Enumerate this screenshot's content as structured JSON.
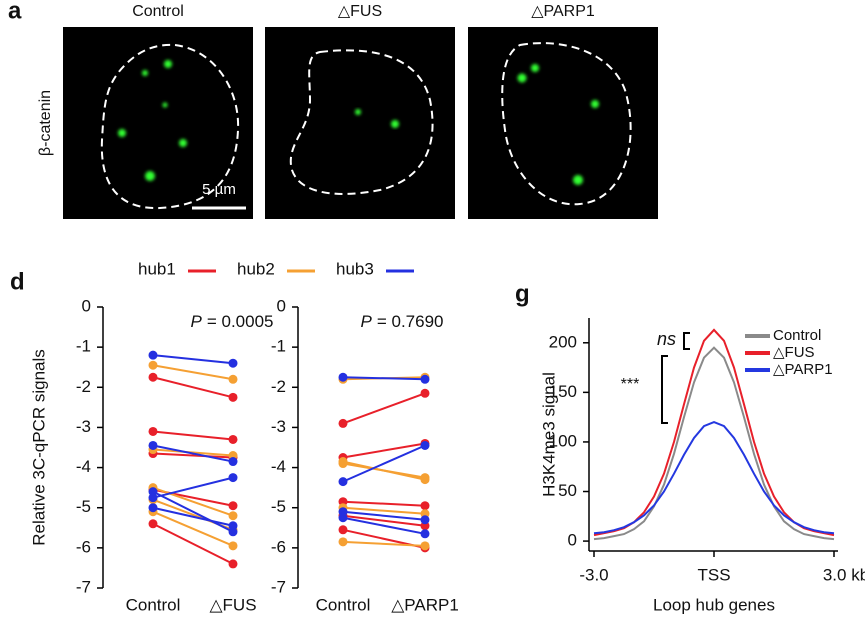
{
  "panel_labels": [
    "a",
    "d",
    "g"
  ],
  "panel_a": {
    "columns": [
      "Control",
      "△FUS",
      "△PARP1"
    ],
    "row_label": "β-catenin",
    "scale_bar": "5 µm"
  },
  "chart_data": [
    {
      "type": "slope",
      "categories": [
        "Control",
        "△FUS"
      ],
      "y_label": "Relative 3C-qPCR signals",
      "annotation": {
        "italic": "P",
        "text": "= 0.0005"
      },
      "ylim": [
        -7,
        0
      ],
      "yticks": [
        0,
        -1,
        -2,
        -3,
        -4,
        -5,
        -6,
        -7
      ],
      "series": [
        {
          "name": "hub1",
          "color": "#e8202a",
          "values": [
            [
              -1.75,
              -2.25
            ],
            [
              -3.1,
              -3.3
            ],
            [
              -3.65,
              -3.75
            ],
            [
              -4.55,
              -4.95
            ],
            [
              -5.4,
              -6.4
            ]
          ]
        },
        {
          "name": "hub2",
          "color": "#f5a033",
          "values": [
            [
              -1.45,
              -1.8
            ],
            [
              -3.55,
              -3.7
            ],
            [
              -4.5,
              -5.2
            ],
            [
              -4.8,
              -5.55
            ],
            [
              -5.1,
              -5.95
            ]
          ]
        },
        {
          "name": "hub3",
          "color": "#2430e0",
          "values": [
            [
              -1.2,
              -1.4
            ],
            [
              -3.45,
              -3.85
            ],
            [
              -4.6,
              -5.6
            ],
            [
              -4.75,
              -4.25
            ],
            [
              -5.0,
              -5.45
            ]
          ]
        }
      ]
    },
    {
      "type": "slope",
      "categories": [
        "Control",
        "△PARP1"
      ],
      "annotation": {
        "italic": "P",
        "text": "= 0.7690"
      },
      "ylim": [
        -7,
        0
      ],
      "yticks": [
        0,
        -1,
        -2,
        -3,
        -4,
        -5,
        -6,
        -7
      ],
      "series": [
        {
          "color": "#e8202a",
          "values": [
            [
              -2.9,
              -2.15
            ],
            [
              -3.75,
              -3.4
            ],
            [
              -4.85,
              -4.95
            ],
            [
              -5.2,
              -5.45
            ],
            [
              -5.55,
              -6.0
            ]
          ]
        },
        {
          "color": "#f5a033",
          "values": [
            [
              -1.8,
              -1.75
            ],
            [
              -3.9,
              -4.25
            ],
            [
              -5.0,
              -5.15
            ],
            [
              -5.85,
              -5.95
            ],
            [
              -3.85,
              -4.3
            ]
          ]
        },
        {
          "color": "#2430e0",
          "values": [
            [
              -1.75,
              -1.8
            ],
            [
              -4.35,
              -3.45
            ],
            [
              -5.1,
              -5.3
            ],
            [
              -5.25,
              -5.65
            ]
          ]
        }
      ]
    },
    {
      "type": "line",
      "x_label": "Loop hub genes",
      "y_label": "H3K4me3 signal",
      "legend": "upper right",
      "annotations": [
        "ns",
        "***"
      ],
      "x": [
        -3,
        -2.75,
        -2.5,
        -2.25,
        -2,
        -1.75,
        -1.5,
        -1.25,
        -1,
        -0.75,
        -0.5,
        -0.25,
        0,
        0.25,
        0.5,
        0.75,
        1,
        1.25,
        1.5,
        1.75,
        2,
        2.25,
        2.5,
        2.75,
        3
      ],
      "xlim": [
        -3,
        3
      ],
      "xticks": [
        {
          "value": -3,
          "label": "-3.0"
        },
        {
          "value": 0,
          "label": "TSS"
        },
        {
          "value": 3,
          "label": "3.0 kb"
        }
      ],
      "ylim": [
        -10,
        225
      ],
      "yticks": [
        0,
        50,
        100,
        150,
        200
      ],
      "series": [
        {
          "name": "Control",
          "color": "#8a8a8a",
          "values": [
            2,
            3,
            5,
            7,
            12,
            20,
            35,
            57,
            88,
            125,
            160,
            185,
            195,
            185,
            160,
            125,
            88,
            57,
            35,
            20,
            12,
            7,
            5,
            3,
            2
          ]
        },
        {
          "name": "△FUS",
          "color": "#e8202a",
          "values": [
            6,
            8,
            10,
            13,
            19,
            29,
            45,
            68,
            100,
            138,
            175,
            202,
            213,
            202,
            175,
            138,
            100,
            68,
            45,
            29,
            19,
            13,
            10,
            8,
            6
          ]
        },
        {
          "name": "△PARP1",
          "color": "#2438e0",
          "values": [
            8,
            9,
            11,
            14,
            19,
            26,
            36,
            50,
            68,
            87,
            104,
            116,
            120,
            116,
            104,
            87,
            68,
            50,
            36,
            26,
            19,
            14,
            11,
            9,
            8
          ]
        }
      ]
    }
  ]
}
